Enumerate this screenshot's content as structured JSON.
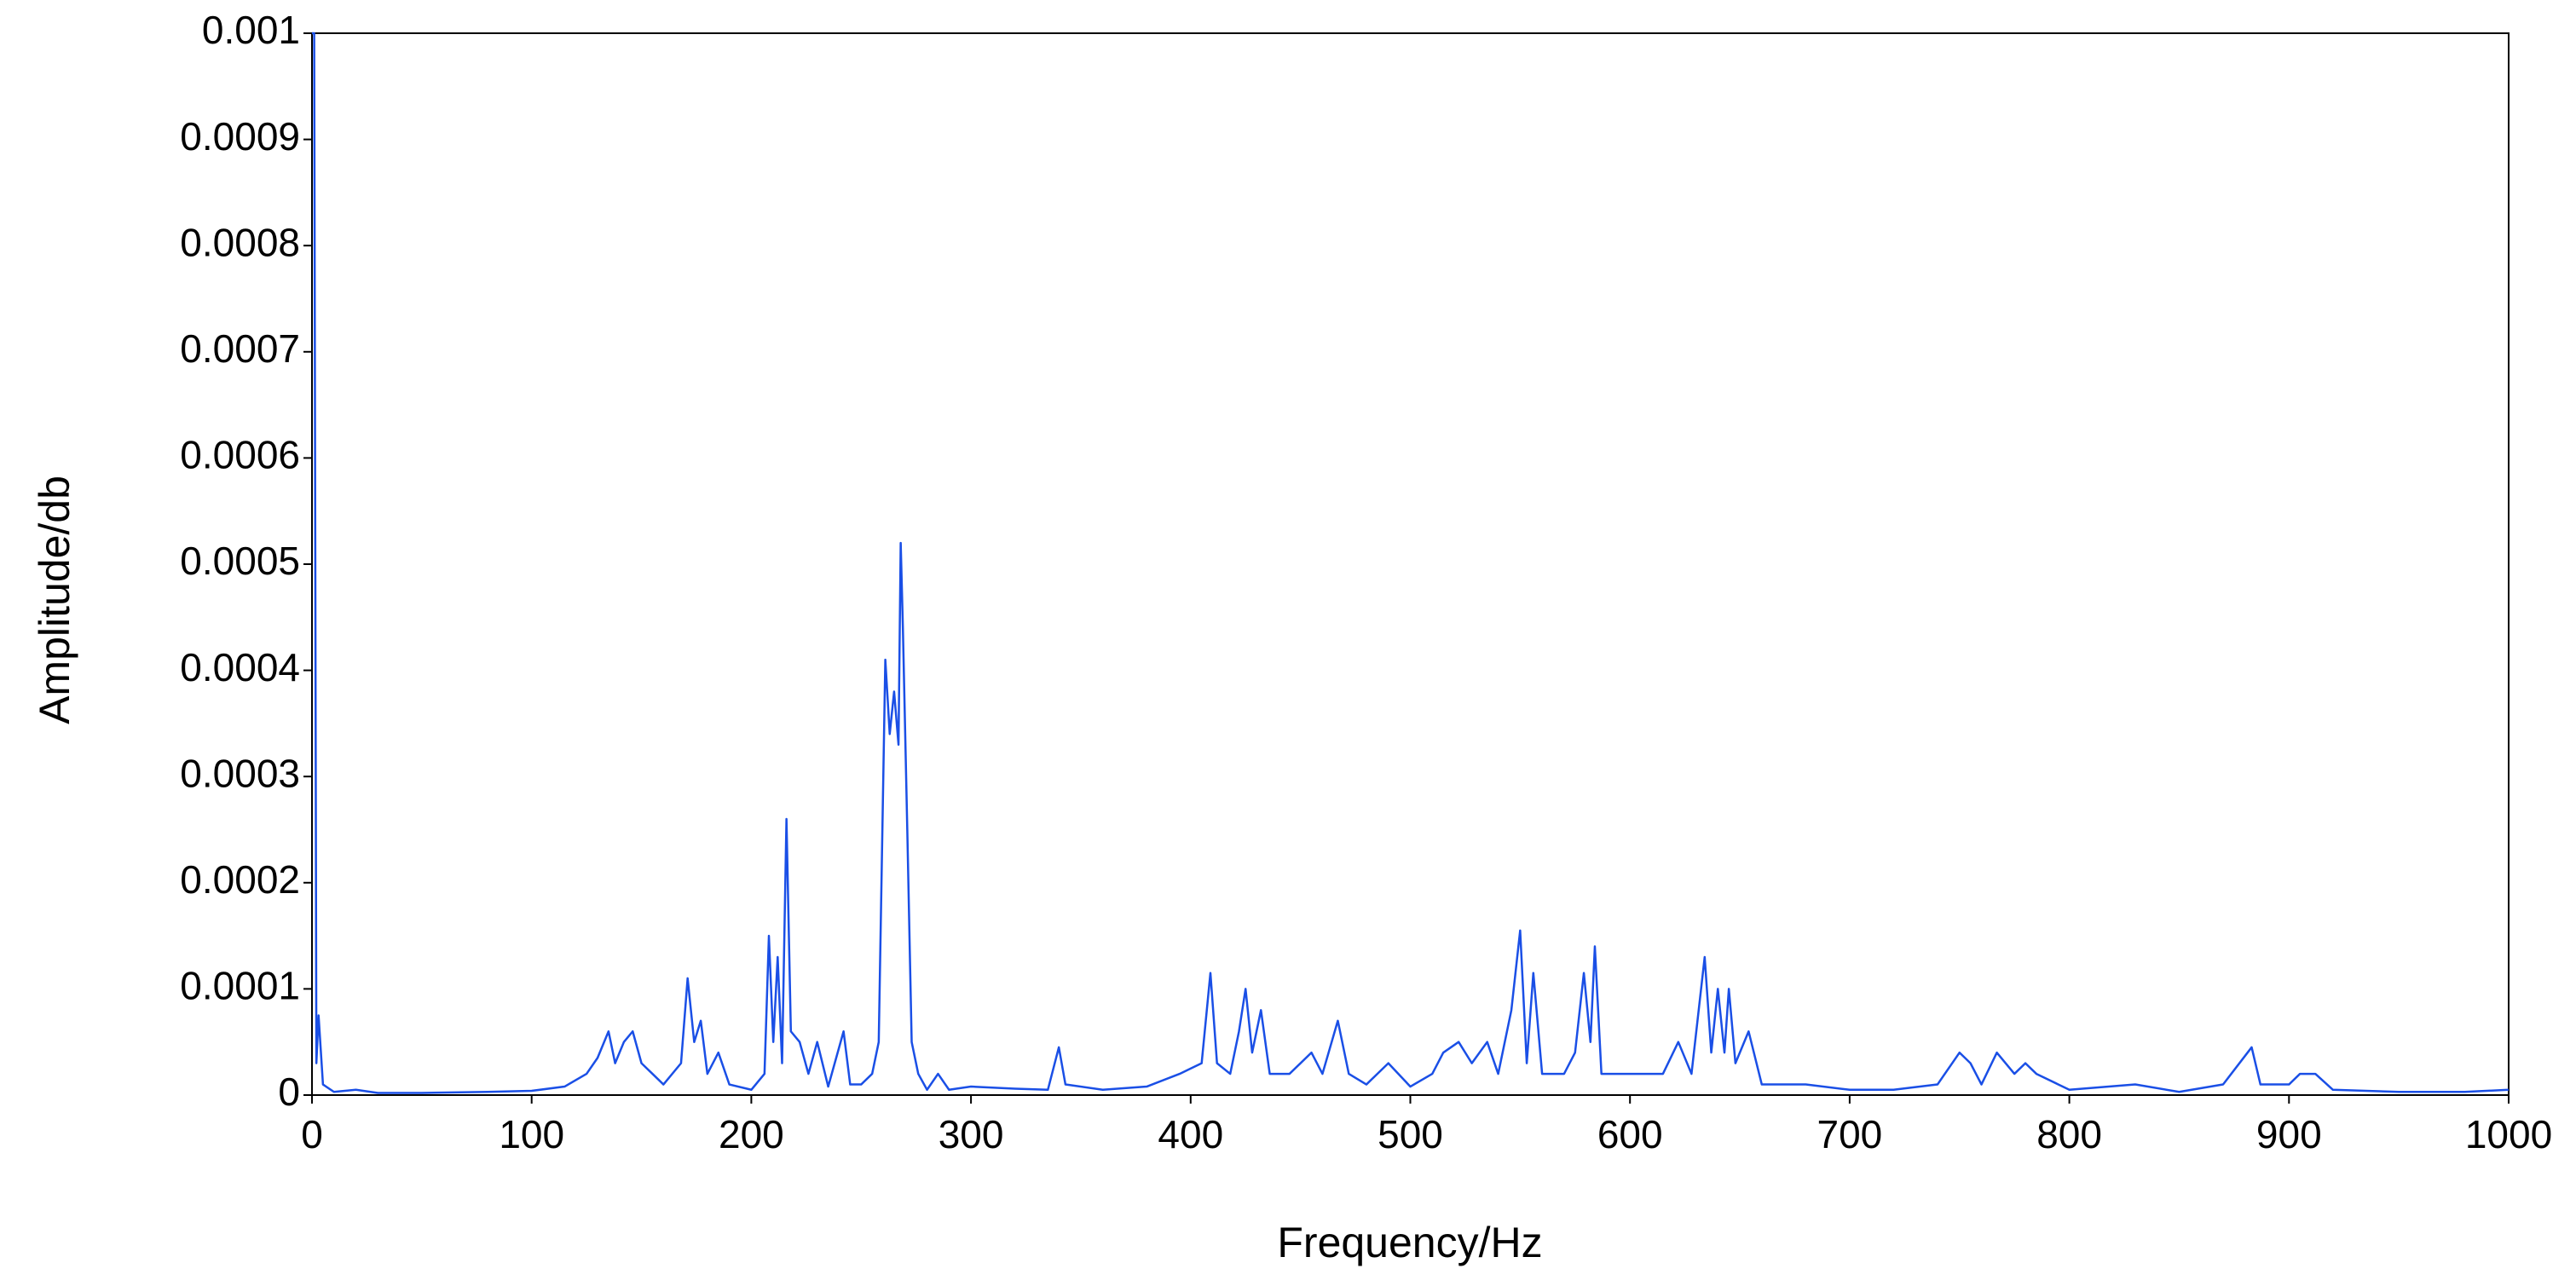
{
  "chart_data": {
    "type": "line",
    "xlabel": "Frequency/Hz",
    "ylabel": "Amplitude/db",
    "xlim": [
      0,
      1000
    ],
    "xticks": [
      0,
      100,
      200,
      300,
      400,
      500,
      600,
      700,
      800,
      900,
      1000
    ],
    "ylim": [
      0,
      0.001
    ],
    "yticks": [
      0,
      0.0001,
      0.0002,
      0.0003,
      0.0004,
      0.0005,
      0.0006,
      0.0007,
      0.0008,
      0.0009,
      0.001
    ],
    "grid": false,
    "series": [
      {
        "color": "#1a4fe6",
        "x": [
          0,
          1,
          2,
          3,
          5,
          10,
          20,
          30,
          50,
          80,
          100,
          115,
          125,
          130,
          135,
          138,
          142,
          146,
          150,
          155,
          160,
          168,
          171,
          174,
          177,
          180,
          185,
          190,
          200,
          206,
          208,
          210,
          212,
          214,
          216,
          218,
          222,
          226,
          230,
          235,
          242,
          245,
          250,
          255,
          258,
          261,
          263,
          265,
          267,
          268,
          269,
          271,
          273,
          276,
          280,
          285,
          290,
          300,
          320,
          335,
          340,
          343,
          360,
          380,
          395,
          405,
          409,
          412,
          418,
          422,
          425,
          428,
          432,
          436,
          445,
          455,
          460,
          467,
          472,
          480,
          490,
          500,
          510,
          515,
          522,
          528,
          535,
          540,
          546,
          550,
          553,
          556,
          560,
          570,
          575,
          579,
          582,
          584,
          587,
          595,
          605,
          615,
          622,
          628,
          634,
          637,
          640,
          643,
          645,
          648,
          654,
          660,
          680,
          700,
          720,
          740,
          750,
          755,
          760,
          767,
          775,
          780,
          785,
          800,
          830,
          850,
          870,
          883,
          887,
          900,
          905,
          912,
          920,
          950,
          980,
          1000
        ],
        "values": [
          0.001,
          0.001,
          3e-05,
          7.5e-05,
          1e-05,
          3e-06,
          5e-06,
          2e-06,
          2e-06,
          3e-06,
          4e-06,
          8e-06,
          2e-05,
          3.5e-05,
          6e-05,
          3e-05,
          5e-05,
          6e-05,
          3e-05,
          2e-05,
          1e-05,
          3e-05,
          0.00011,
          5e-05,
          7e-05,
          2e-05,
          4e-05,
          1e-05,
          5e-06,
          2e-05,
          0.00015,
          5e-05,
          0.00013,
          3e-05,
          0.00026,
          6e-05,
          5e-05,
          2e-05,
          5e-05,
          8e-06,
          6e-05,
          1e-05,
          1e-05,
          2e-05,
          5e-05,
          0.00041,
          0.00034,
          0.00038,
          0.00033,
          0.00052,
          0.00044,
          0.00025,
          5e-05,
          2e-05,
          5e-06,
          2e-05,
          5e-06,
          8e-06,
          6e-06,
          5e-06,
          4.5e-05,
          1e-05,
          5e-06,
          8e-06,
          2e-05,
          3e-05,
          0.000115,
          3e-05,
          2e-05,
          6e-05,
          0.0001,
          4e-05,
          8e-05,
          2e-05,
          2e-05,
          4e-05,
          2e-05,
          7e-05,
          2e-05,
          1e-05,
          3e-05,
          8e-06,
          2e-05,
          4e-05,
          5e-05,
          3e-05,
          5e-05,
          2e-05,
          8e-05,
          0.000155,
          3e-05,
          0.000115,
          2e-05,
          2e-05,
          4e-05,
          0.000115,
          5e-05,
          0.00014,
          2e-05,
          2e-05,
          2e-05,
          2e-05,
          5e-05,
          2e-05,
          0.00013,
          4e-05,
          0.0001,
          4e-05,
          0.0001,
          3e-05,
          6e-05,
          1e-05,
          1e-05,
          5e-06,
          5e-06,
          1e-05,
          4e-05,
          3e-05,
          1e-05,
          4e-05,
          2e-05,
          3e-05,
          2e-05,
          5e-06,
          1e-05,
          3e-06,
          1e-05,
          4.5e-05,
          1e-05,
          1e-05,
          2e-05,
          2e-05,
          5e-06,
          3e-06,
          3e-06,
          5e-06
        ]
      }
    ]
  }
}
